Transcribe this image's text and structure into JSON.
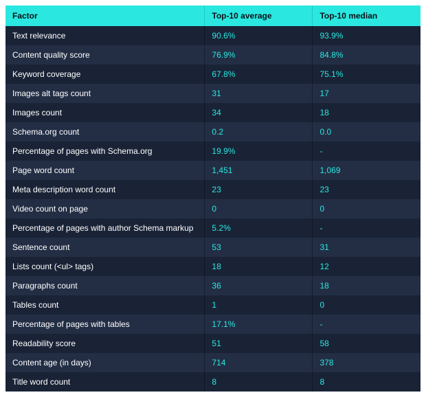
{
  "table": {
    "type": "table",
    "colors": {
      "header_bg": "#2ae8e0",
      "header_text": "#0b0f18",
      "row_bg_a": "#1a2336",
      "row_bg_b": "#232e45",
      "factor_text": "#ffffff",
      "value_text": "#2ae8e0",
      "border": "rgba(0,0,0,0.35)"
    },
    "font_size_pt": 9,
    "columns": [
      {
        "key": "factor",
        "label": "Factor"
      },
      {
        "key": "avg",
        "label": "Top-10 average"
      },
      {
        "key": "med",
        "label": "Top-10 median"
      }
    ],
    "rows": [
      {
        "factor": "Text relevance",
        "avg": "90.6%",
        "med": "93.9%"
      },
      {
        "factor": "Content quality score",
        "avg": "76.9%",
        "med": "84.8%"
      },
      {
        "factor": "Keyword coverage",
        "avg": "67.8%",
        "med": "75.1%"
      },
      {
        "factor": "Images alt tags count",
        "avg": "31",
        "med": "17"
      },
      {
        "factor": "Images count",
        "avg": "34",
        "med": "18"
      },
      {
        "factor": "Schema.org count",
        "avg": "0.2",
        "med": "0.0"
      },
      {
        "factor": "Percentage of pages with Schema.org",
        "avg": "19.9%",
        "med": "-"
      },
      {
        "factor": "Page word count",
        "avg": "1,451",
        "med": "1,069"
      },
      {
        "factor": "Meta description word count",
        "avg": "23",
        "med": "23"
      },
      {
        "factor": "Video count on page",
        "avg": "0",
        "med": "0"
      },
      {
        "factor": "Percentage of pages with author Schema markup",
        "avg": "5.2%",
        "med": "-"
      },
      {
        "factor": "Sentence count",
        "avg": "53",
        "med": "31"
      },
      {
        "factor": "Lists count (<ul> tags)",
        "avg": "18",
        "med": "12"
      },
      {
        "factor": "Paragraphs count",
        "avg": "36",
        "med": "18"
      },
      {
        "factor": "Tables count",
        "avg": "1",
        "med": "0"
      },
      {
        "factor": "Percentage of pages with tables",
        "avg": "17.1%",
        "med": "-"
      },
      {
        "factor": "Readability score",
        "avg": "51",
        "med": "58"
      },
      {
        "factor": "Content age (in days)",
        "avg": "714",
        "med": "378"
      },
      {
        "factor": "Title word count",
        "avg": "8",
        "med": "8"
      }
    ]
  }
}
